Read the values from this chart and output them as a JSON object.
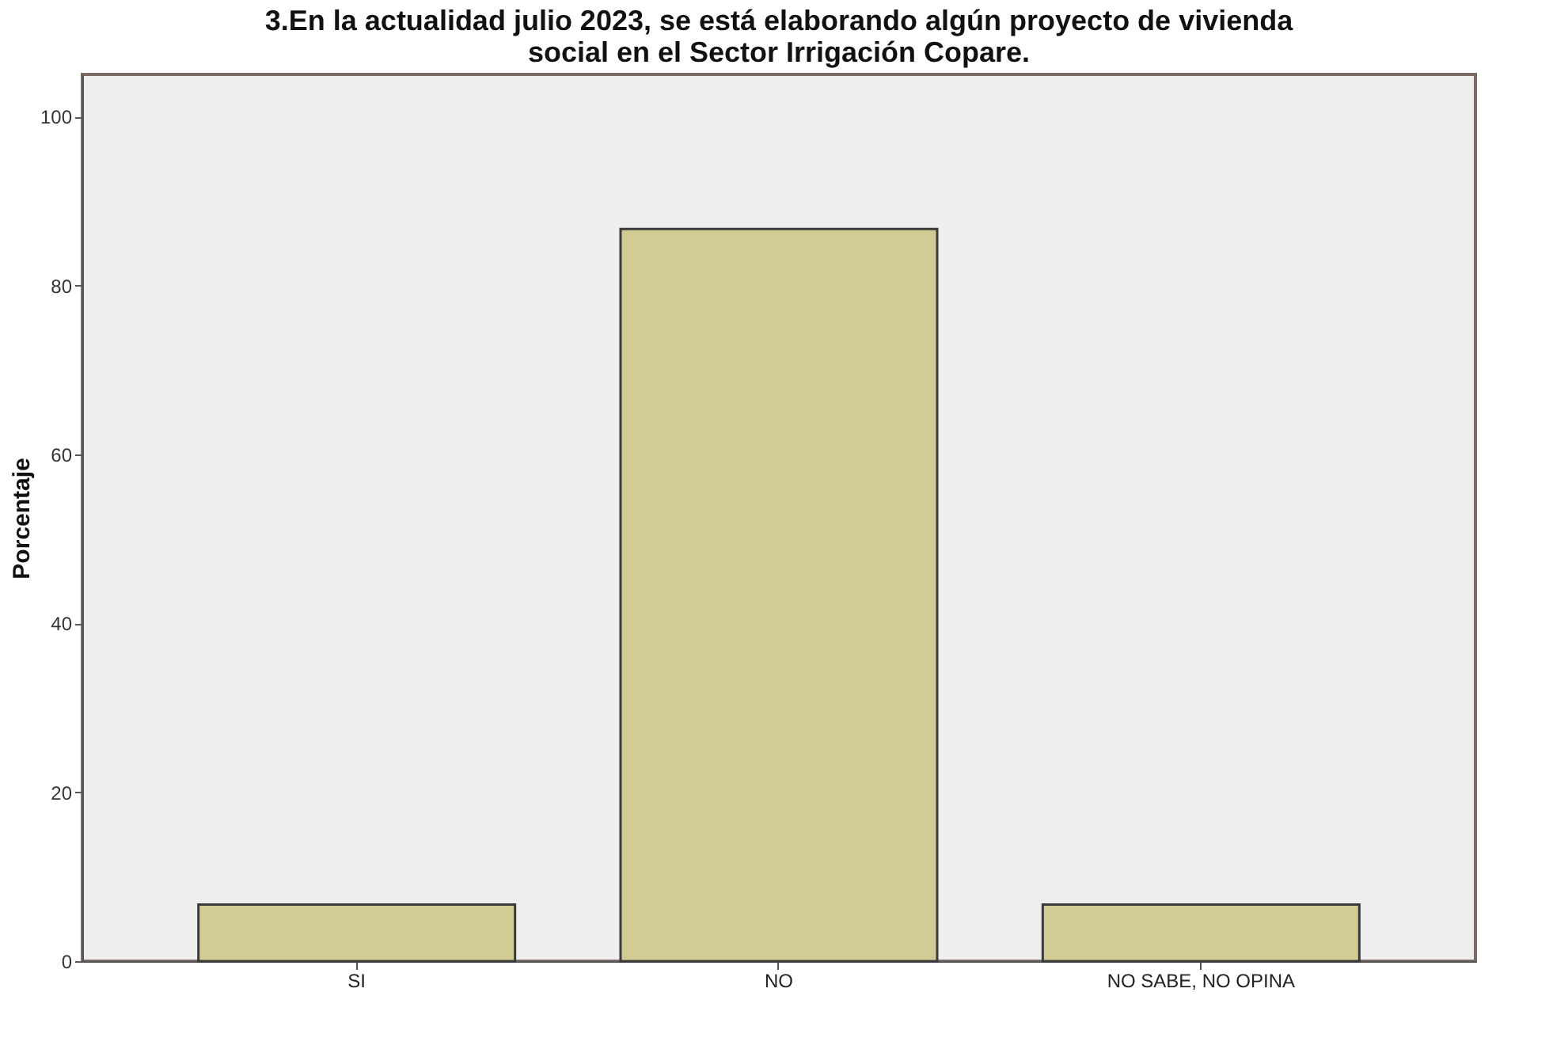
{
  "chart_data": {
    "type": "bar",
    "title": "3.En la actualidad julio 2023, se está elaborando algún proyecto de vivienda\nsocial en el Sector Irrigación Copare.",
    "ylabel": "Porcentaje",
    "categories": [
      "SI",
      "NO",
      "NO SABE, NO OPINA"
    ],
    "values": [
      6.7,
      86.7,
      6.7
    ],
    "color": "#d2cc94",
    "ylim": [
      0,
      105
    ],
    "yticks": [
      0,
      20,
      40,
      60,
      80,
      100
    ],
    "grid": false
  }
}
